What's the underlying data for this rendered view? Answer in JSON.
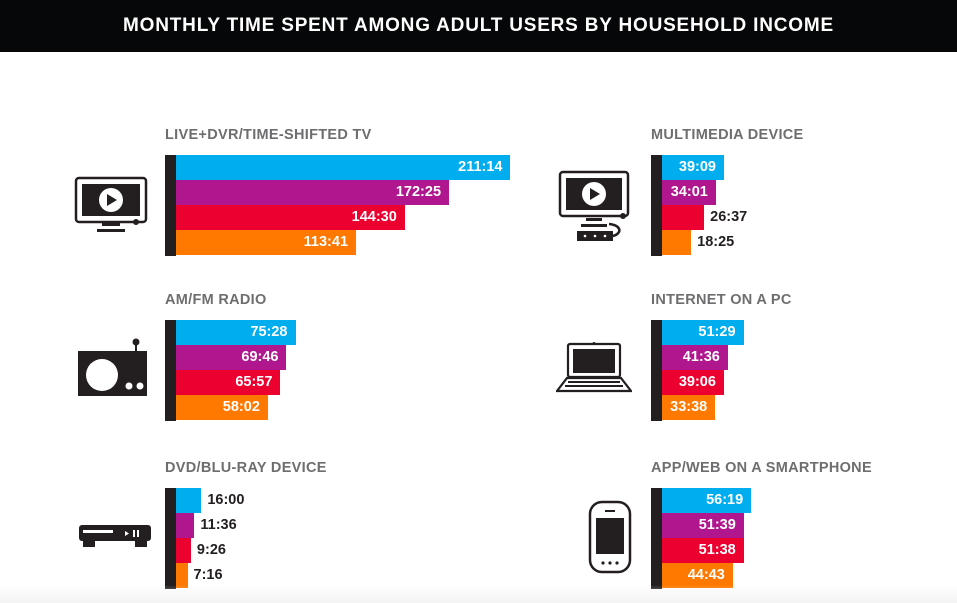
{
  "header": {
    "title": "MONTHLY TIME SPENT AMONG ADULT USERS BY HOUSEHOLD INCOME"
  },
  "colors": {
    "series": [
      "#00aeef",
      "#b0178f",
      "#ec0030",
      "#ff7900"
    ],
    "axis": "#231f20",
    "title_gray": "#6e6e70"
  },
  "icons": {
    "tv": "tv-play-icon",
    "multimedia": "tv-with-streaming-box-icon",
    "radio": "radio-icon",
    "pc": "laptop-icon",
    "dvd": "dvd-player-icon",
    "smartphone": "smartphone-icon"
  },
  "chart_data": {
    "type": "bar",
    "title": "MONTHLY TIME SPENT AMONG ADULT USERS BY HOUSEHOLD INCOME",
    "orientation": "horizontal",
    "unit": "hours:minutes",
    "series_count": 4,
    "legend": "none",
    "panels": [
      {
        "id": "tv",
        "title": "LIVE+DVR/TIME-SHIFTED TV",
        "labels": [
          "211:14",
          "172:25",
          "144:30",
          "113:41"
        ],
        "values": [
          211.233,
          172.417,
          144.5,
          113.683
        ]
      },
      {
        "id": "multimedia",
        "title": "MULTIMEDIA DEVICE",
        "labels": [
          "39:09",
          "34:01",
          "26:37",
          "18:25"
        ],
        "values": [
          39.15,
          34.017,
          26.617,
          18.417
        ]
      },
      {
        "id": "radio",
        "title": "AM/FM RADIO",
        "labels": [
          "75:28",
          "69:46",
          "65:57",
          "58:02"
        ],
        "values": [
          75.467,
          69.767,
          65.95,
          58.033
        ]
      },
      {
        "id": "pc",
        "title": "INTERNET ON A PC",
        "labels": [
          "51:29",
          "41:36",
          "39:06",
          "33:38"
        ],
        "values": [
          51.483,
          41.6,
          39.1,
          33.633
        ]
      },
      {
        "id": "dvd",
        "title": "DVD/BLU-RAY DEVICE",
        "labels": [
          "16:00",
          "11:36",
          "9:26",
          "7:16"
        ],
        "values": [
          16.0,
          11.6,
          9.433,
          7.267
        ]
      },
      {
        "id": "smartphone",
        "title": "APP/WEB ON A SMARTPHONE",
        "labels": [
          "56:19",
          "51:39",
          "51:38",
          "44:43"
        ],
        "values": [
          56.317,
          51.65,
          51.633,
          44.717
        ]
      }
    ]
  }
}
